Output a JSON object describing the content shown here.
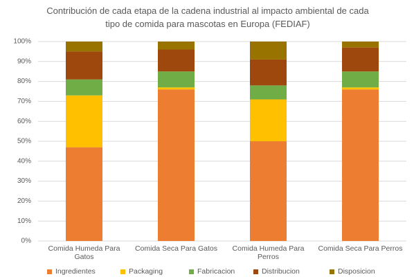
{
  "chart_data": {
    "type": "stacked_bar",
    "title": "Contribución de cada etapa de la cadena industrial al impacto ambiental de cada tipo de comida para mascotas en Europa (FEDIAF)",
    "categories": [
      "Comida Humeda Para Gatos",
      "Comida Seca Para Gatos",
      "Comida Humeda Para Perros",
      "Comida Seca Para Perros"
    ],
    "series": [
      {
        "name": "Ingredientes",
        "color": "#ed7d31",
        "values": [
          47,
          76,
          50,
          76
        ]
      },
      {
        "name": "Packaging",
        "color": "#ffc000",
        "values": [
          26,
          1,
          21,
          1
        ]
      },
      {
        "name": "Fabricacion",
        "color": "#70ad47",
        "values": [
          8,
          8,
          7,
          8
        ]
      },
      {
        "name": "Distribucion",
        "color": "#9e480e",
        "values": [
          14,
          11,
          13,
          12
        ]
      },
      {
        "name": "Disposicion",
        "color": "#997300",
        "values": [
          5,
          4,
          9,
          3
        ]
      }
    ],
    "ylim": [
      0,
      100
    ],
    "yticks": [
      {
        "value": 0,
        "label": "0%"
      },
      {
        "value": 10,
        "label": "10%"
      },
      {
        "value": 20,
        "label": "20%"
      },
      {
        "value": 30,
        "label": "30%"
      },
      {
        "value": 40,
        "label": "40%"
      },
      {
        "value": 50,
        "label": "50%"
      },
      {
        "value": 60,
        "label": "60%"
      },
      {
        "value": 70,
        "label": "70%"
      },
      {
        "value": 80,
        "label": "80%"
      },
      {
        "value": 90,
        "label": "90%"
      },
      {
        "value": 100,
        "label": "100%"
      }
    ],
    "grid": true,
    "legend": "bottom"
  }
}
